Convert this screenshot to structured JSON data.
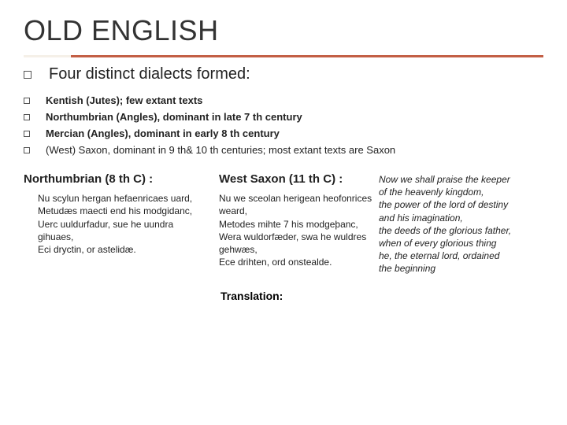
{
  "title": "OLD ENGLISH",
  "accent_color": "#c35f45",
  "accent_tab_color": "#f5f0e8",
  "main_item": "Four distinct dialects formed:",
  "sub_items": [
    "Kentish (Jutes); few extant texts",
    "Northumbrian (Angles), dominant in late 7 th century",
    "Mercian (Angles), dominant in early 8 th century",
    "(West) Saxon, dominant in 9 th& 10 th centuries; most extant texts are Saxon"
  ],
  "col1": {
    "head": "Northumbrian (8 th C) :",
    "body": "Nu scylun hergan hefaenricaes uard,\nMetudæs maecti end his modgidanc,\nUerc uuldurfadur, sue he uundra gihuaes,\nEci dryctin, or astelidæ."
  },
  "col2": {
    "head": "West Saxon (11 th C) :",
    "body": "Nu we sceolan herigean heofonrices weard,\nMetodes mihte 7 his modgeþanc,\nWera wuldorfæder, swa he wuldres gehwæs,\nEce drihten, ord onstealde."
  },
  "col3": {
    "body": "Now we shall praise the keeper of the heavenly kingdom,\nthe power of the lord of destiny and his imagination,\nthe deeds of the glorious father, when of every glorious thing\nhe, the eternal lord, ordained the beginning"
  },
  "translation_label": "Translation:"
}
